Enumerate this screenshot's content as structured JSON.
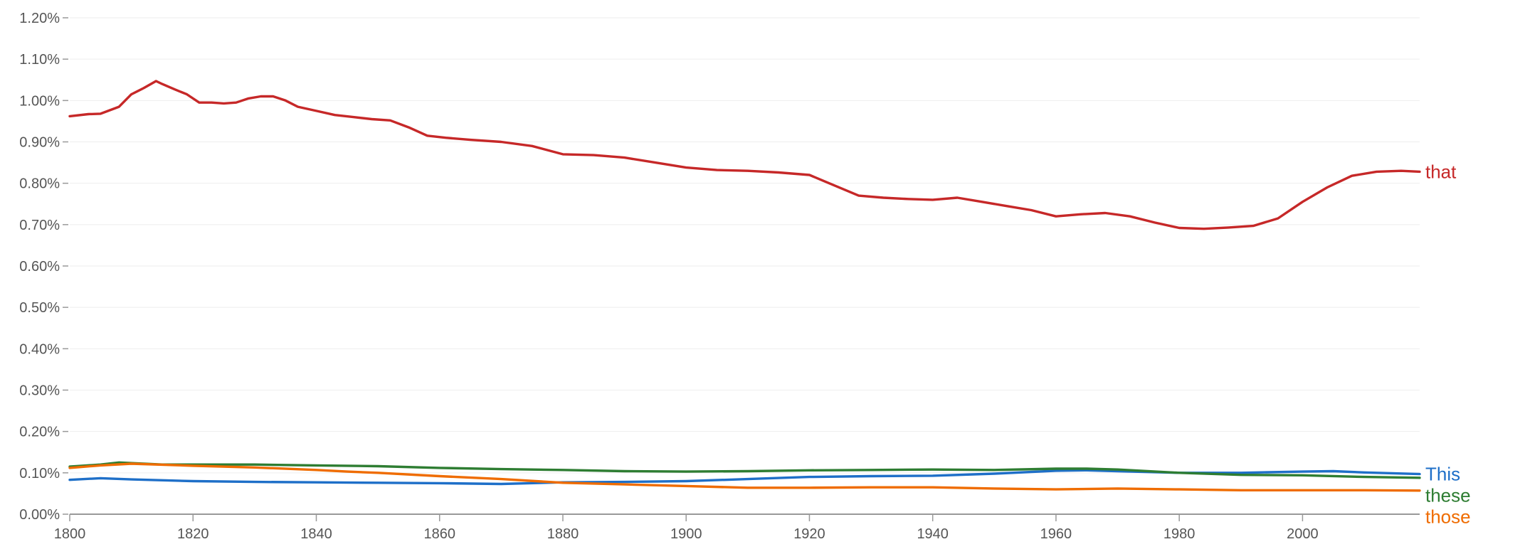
{
  "chart_data": {
    "type": "line",
    "title": "",
    "xlabel": "",
    "ylabel": "",
    "xlim": [
      1800,
      2019
    ],
    "ylim": [
      0,
      1.2
    ],
    "grid": true,
    "legend": "inline labels at right end of each line",
    "y_ticks": [
      "0.00%",
      "0.10%",
      "0.20%",
      "0.30%",
      "0.40%",
      "0.50%",
      "0.60%",
      "0.70%",
      "0.80%",
      "0.90%",
      "1.00%",
      "1.10%",
      "1.20%"
    ],
    "x_ticks": [
      "1800",
      "1820",
      "1840",
      "1860",
      "1880",
      "1900",
      "1920",
      "1940",
      "1960",
      "1980",
      "2000"
    ],
    "series": [
      {
        "name": "that",
        "color": "#c62828",
        "x": [
          1800,
          1803,
          1805,
          1808,
          1810,
          1812,
          1814,
          1815,
          1817,
          1819,
          1821,
          1823,
          1825,
          1827,
          1829,
          1831,
          1833,
          1835,
          1837,
          1840,
          1843,
          1846,
          1849,
          1852,
          1855,
          1858,
          1861,
          1865,
          1870,
          1875,
          1880,
          1885,
          1890,
          1895,
          1900,
          1905,
          1910,
          1915,
          1920,
          1924,
          1928,
          1932,
          1936,
          1940,
          1944,
          1948,
          1952,
          1956,
          1960,
          1964,
          1968,
          1972,
          1976,
          1980,
          1984,
          1988,
          1992,
          1996,
          2000,
          2004,
          2008,
          2012,
          2016,
          2019
        ],
        "y": [
          0.962,
          0.967,
          0.968,
          0.985,
          1.015,
          1.03,
          1.047,
          1.04,
          1.027,
          1.015,
          0.995,
          0.995,
          0.993,
          0.995,
          1.005,
          1.01,
          1.01,
          1.0,
          0.985,
          0.975,
          0.965,
          0.96,
          0.955,
          0.952,
          0.935,
          0.915,
          0.91,
          0.905,
          0.9,
          0.89,
          0.87,
          0.868,
          0.862,
          0.85,
          0.838,
          0.832,
          0.83,
          0.826,
          0.82,
          0.795,
          0.77,
          0.765,
          0.762,
          0.76,
          0.765,
          0.755,
          0.745,
          0.735,
          0.72,
          0.725,
          0.728,
          0.72,
          0.705,
          0.692,
          0.69,
          0.693,
          0.697,
          0.715,
          0.755,
          0.79,
          0.818,
          0.828,
          0.83,
          0.828
        ]
      },
      {
        "name": "This",
        "color": "#1e6fc8",
        "x": [
          1800,
          1805,
          1810,
          1820,
          1830,
          1840,
          1850,
          1860,
          1870,
          1880,
          1890,
          1900,
          1910,
          1920,
          1930,
          1940,
          1950,
          1960,
          1965,
          1970,
          1980,
          1990,
          2000,
          2005,
          2010,
          2019
        ],
        "y": [
          0.083,
          0.087,
          0.084,
          0.08,
          0.078,
          0.077,
          0.076,
          0.075,
          0.073,
          0.077,
          0.078,
          0.08,
          0.085,
          0.09,
          0.092,
          0.093,
          0.098,
          0.105,
          0.106,
          0.104,
          0.1,
          0.1,
          0.103,
          0.104,
          0.101,
          0.097
        ]
      },
      {
        "name": "these",
        "color": "#2e7d32",
        "x": [
          1800,
          1805,
          1808,
          1815,
          1820,
          1830,
          1840,
          1850,
          1860,
          1870,
          1880,
          1890,
          1900,
          1910,
          1920,
          1930,
          1940,
          1950,
          1960,
          1965,
          1970,
          1980,
          1990,
          2000,
          2010,
          2019
        ],
        "y": [
          0.115,
          0.12,
          0.125,
          0.12,
          0.12,
          0.12,
          0.118,
          0.116,
          0.112,
          0.109,
          0.107,
          0.104,
          0.103,
          0.104,
          0.106,
          0.107,
          0.108,
          0.107,
          0.11,
          0.11,
          0.108,
          0.1,
          0.095,
          0.094,
          0.09,
          0.088
        ]
      },
      {
        "name": "those",
        "color": "#ef6c00",
        "x": [
          1800,
          1805,
          1810,
          1820,
          1830,
          1840,
          1845,
          1850,
          1860,
          1870,
          1880,
          1890,
          1900,
          1910,
          1920,
          1930,
          1940,
          1950,
          1960,
          1970,
          1980,
          1990,
          2000,
          2010,
          2019
        ],
        "y": [
          0.112,
          0.118,
          0.122,
          0.117,
          0.113,
          0.107,
          0.103,
          0.1,
          0.092,
          0.085,
          0.076,
          0.072,
          0.068,
          0.064,
          0.064,
          0.065,
          0.065,
          0.062,
          0.06,
          0.062,
          0.06,
          0.058,
          0.058,
          0.058,
          0.057
        ]
      }
    ]
  }
}
